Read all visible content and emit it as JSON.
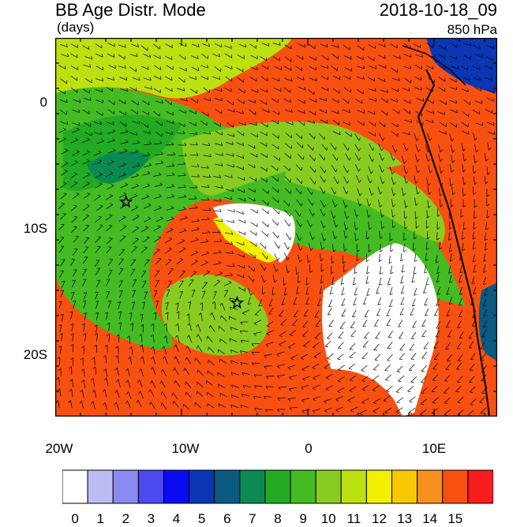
{
  "header": {
    "title": "BB Age Distr. Mode",
    "units": "(days)",
    "datetime": "2018-10-18_09",
    "level": "850 hPa"
  },
  "axes": {
    "x_ticks": [
      "20W",
      "10W",
      "0",
      "10E"
    ],
    "y_ticks": [
      "0",
      "10S",
      "20S"
    ],
    "lon_range": [
      -20,
      15
    ],
    "lat_range": [
      -25,
      5
    ]
  },
  "colorbar": {
    "labels": [
      "0",
      "1",
      "2",
      "3",
      "4",
      "5",
      "6",
      "7",
      "8",
      "9",
      "10",
      "11",
      "12",
      "13",
      "14",
      "15"
    ],
    "colors": [
      "#ffffff",
      "#bcbcf5",
      "#8a8af0",
      "#4a4af2",
      "#0b0bf2",
      "#0a36b4",
      "#0a5a82",
      "#0a8a50",
      "#22aa22",
      "#44bb22",
      "#88cc22",
      "#bce010",
      "#f0f000",
      "#f8c800",
      "#f89020",
      "#f85010",
      "#f81c1c"
    ]
  },
  "markers": [
    {
      "name": "star",
      "lon": -14.4,
      "lat": -8.0
    },
    {
      "name": "star",
      "lon": -5.6,
      "lat": -16.0
    }
  ]
}
